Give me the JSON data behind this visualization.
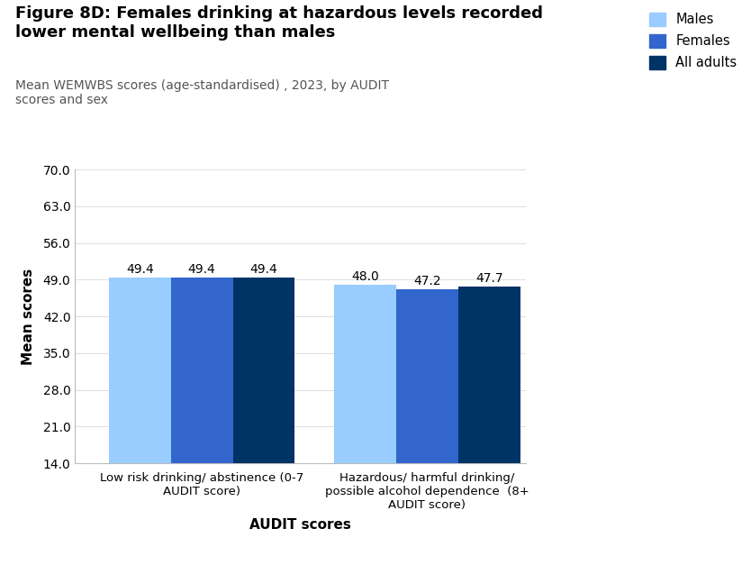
{
  "title_bold": "Figure 8D: Females drinking at hazardous levels recorded\nlower mental wellbeing than males",
  "subtitle": "Mean WEMWBS scores (age-standardised) , 2023, by AUDIT\nscores and sex",
  "xlabel": "AUDIT scores",
  "ylabel": "Mean scores",
  "ylim": [
    14.0,
    70.0
  ],
  "yticks": [
    14.0,
    21.0,
    28.0,
    35.0,
    42.0,
    49.0,
    56.0,
    63.0,
    70.0
  ],
  "groups": [
    "Low risk drinking/ abstinence (0-7\nAUDIT score)",
    "Hazardous/ harmful drinking/\npossible alcohol dependence  (8+\nAUDIT score)"
  ],
  "series": {
    "Males": [
      49.4,
      48.0
    ],
    "Females": [
      49.4,
      47.2
    ],
    "All adults": [
      49.4,
      47.7
    ]
  },
  "colors": {
    "Males": "#99ccff",
    "Females": "#3366cc",
    "All adults": "#003366"
  },
  "bar_width": 0.22,
  "group_positions": [
    0.35,
    1.15
  ],
  "label_fontsize": 9.5,
  "value_fontsize": 10,
  "title_fontsize": 13,
  "subtitle_fontsize": 10,
  "axis_label_fontsize": 11,
  "tick_fontsize": 10,
  "legend_fontsize": 10.5,
  "background_color": "#ffffff"
}
